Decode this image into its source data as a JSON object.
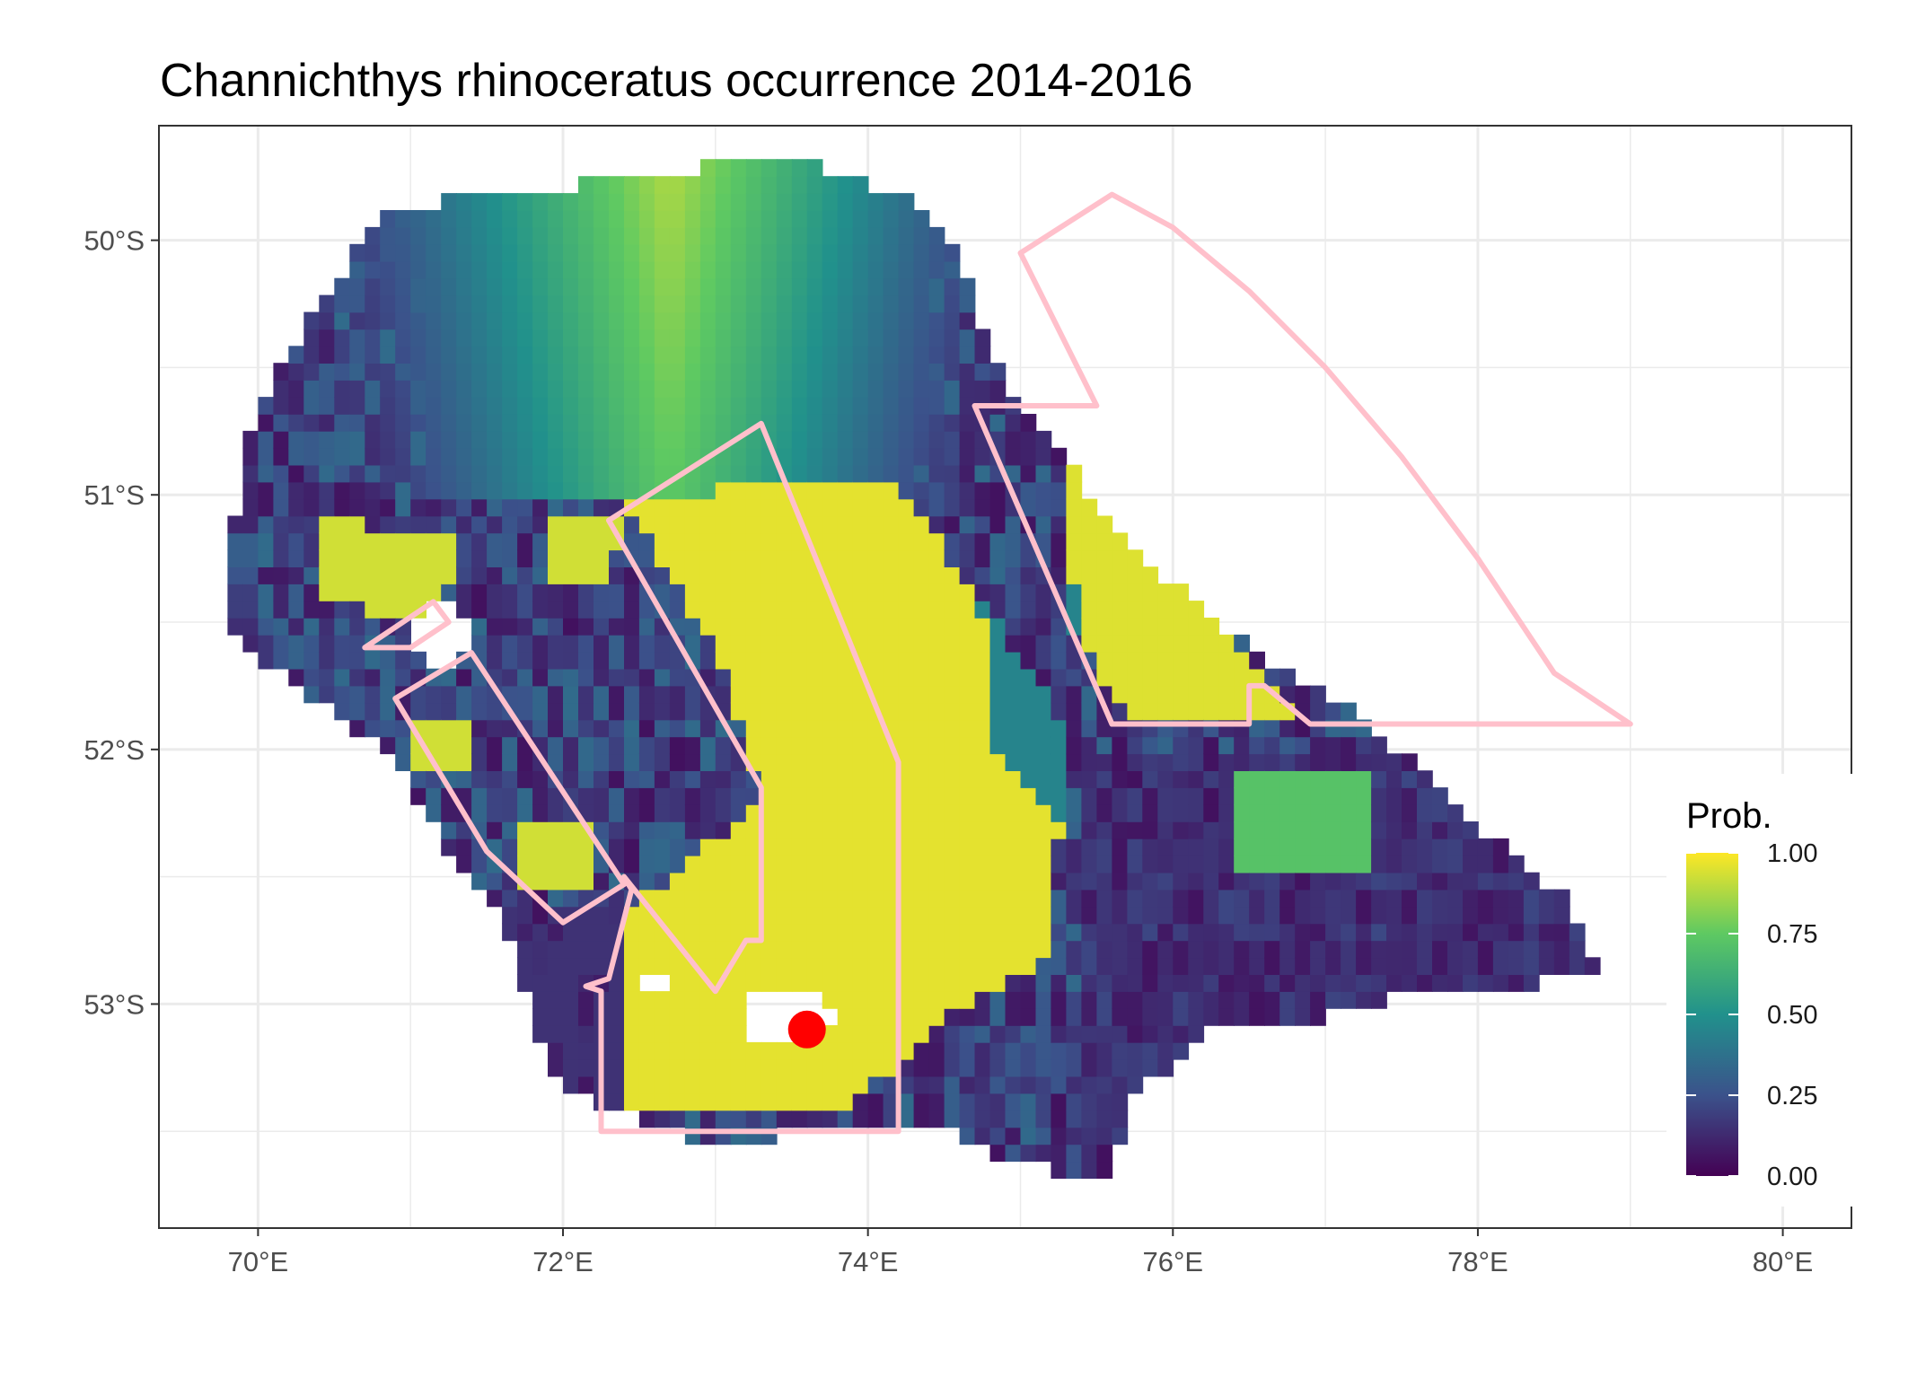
{
  "title": "Channichthys rhinoceratus  occurrence 2014-2016",
  "map": {
    "type": "raster_map",
    "lon_range": [
      69.35,
      80.45
    ],
    "lat_range": [
      -53.88,
      -49.55
    ],
    "x_ticks": [
      70,
      72,
      74,
      76,
      78,
      80
    ],
    "x_tick_labels": [
      "70°E",
      "72°E",
      "74°E",
      "76°E",
      "78°E",
      "80°E"
    ],
    "y_ticks": [
      -50,
      -51,
      -52,
      -53
    ],
    "y_tick_labels": [
      "50°S",
      "51°S",
      "52°S",
      "53°S"
    ],
    "grid": true,
    "colorscale": "viridis",
    "colors": {
      "viridis_stops": [
        "#440154",
        "#3b528b",
        "#21918c",
        "#5ec962",
        "#fde725"
      ],
      "zone_outline": "#ffc0cb",
      "point": "#ff0000",
      "grid": "#ebebeb",
      "panel_border": "#333333"
    },
    "point": {
      "lon": 73.6,
      "lat": -53.1
    },
    "zones": [
      {
        "name": "zone-north-arc",
        "lonlat": [
          [
            75.0,
            -50.05
          ],
          [
            75.6,
            -49.82
          ],
          [
            76.0,
            -49.95
          ],
          [
            76.5,
            -50.2
          ],
          [
            77.0,
            -50.5
          ],
          [
            77.5,
            -50.85
          ],
          [
            78.0,
            -51.25
          ],
          [
            78.5,
            -51.7
          ],
          [
            79.0,
            -51.9
          ],
          [
            76.9,
            -51.9
          ],
          [
            76.6,
            -51.75
          ],
          [
            76.5,
            -51.75
          ],
          [
            76.5,
            -51.9
          ],
          [
            75.6,
            -51.9
          ],
          [
            74.7,
            -50.65
          ],
          [
            75.5,
            -50.65
          ]
        ]
      },
      {
        "name": "zone-central-shelf",
        "lonlat": [
          [
            72.3,
            -51.1
          ],
          [
            73.3,
            -50.72
          ],
          [
            74.2,
            -52.05
          ],
          [
            74.2,
            -53.5
          ],
          [
            72.25,
            -53.5
          ],
          [
            72.25,
            -52.95
          ],
          [
            72.15,
            -52.93
          ],
          [
            72.3,
            -52.9
          ],
          [
            72.45,
            -52.55
          ],
          [
            72.4,
            -52.5
          ],
          [
            73.0,
            -52.95
          ],
          [
            73.2,
            -52.75
          ],
          [
            73.3,
            -52.75
          ],
          [
            73.3,
            -52.15
          ],
          [
            72.3,
            -51.1
          ]
        ]
      },
      {
        "name": "zone-west-strip",
        "lonlat": [
          [
            70.9,
            -51.8
          ],
          [
            71.4,
            -51.62
          ],
          [
            72.4,
            -52.53
          ],
          [
            72.0,
            -52.68
          ],
          [
            71.5,
            -52.4
          ],
          [
            70.9,
            -51.8
          ]
        ]
      },
      {
        "name": "zone-northwest-sliver",
        "lonlat": [
          [
            70.7,
            -51.6
          ],
          [
            71.15,
            -51.42
          ],
          [
            71.25,
            -51.5
          ],
          [
            71.0,
            -51.6
          ],
          [
            70.7,
            -51.6
          ]
        ]
      }
    ]
  },
  "legend": {
    "title": "Prob.",
    "ticks": [
      0.0,
      0.25,
      0.5,
      0.75,
      1.0
    ],
    "tick_labels": [
      "0.00",
      "0.25",
      "0.50",
      "0.75",
      "1.00"
    ]
  }
}
